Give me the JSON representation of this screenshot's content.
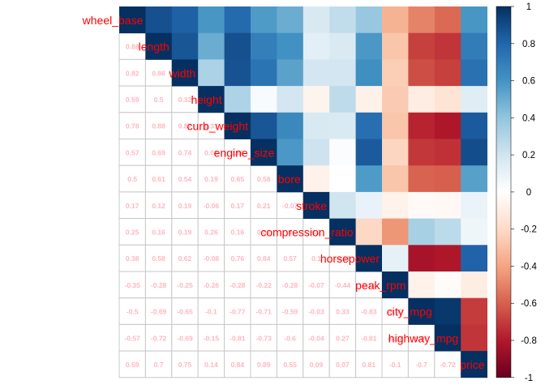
{
  "chart_data": {
    "type": "heatmap",
    "variables": [
      "wheel_base",
      "length",
      "width",
      "height",
      "curb_weight",
      "engine_size",
      "bore",
      "stroke",
      "compression_ratio",
      "horsepower",
      "peak_rpm",
      "city_mpg",
      "highway_mpg",
      "price"
    ],
    "visible_labels": [
      "wheel_base",
      "length",
      "width",
      "height",
      "curb_weight",
      "engine_size",
      "bore",
      "stroke",
      "compression_ratio",
      "horsepower",
      "peak_rpm",
      "city_mpg",
      "highway_mpg",
      "price"
    ],
    "lower_triangle_text": [
      [],
      [
        "0.88"
      ],
      [
        "0.82",
        "0.86"
      ],
      [
        "0.59",
        "0.5",
        "0.32"
      ],
      [
        "0.78",
        "0.88",
        "0.87",
        "0.31"
      ],
      [
        "0.57",
        "0.69",
        "0.74",
        "0.03",
        "0.86"
      ],
      [
        "0.5",
        "0.61",
        "0.54",
        "0.19",
        "0.65",
        "0.58"
      ],
      [
        "0.17",
        "0.12",
        "0.19",
        "-0.06",
        "0.17",
        "0.21",
        "-0.07"
      ],
      [
        "0.25",
        "0.16",
        "0.19",
        "0.26",
        "0.16",
        "0.02",
        "0",
        "0.2"
      ],
      [
        "0.38",
        "0.58",
        "0.62",
        "-0.08",
        "0.76",
        "0.84",
        "0.57",
        "0.1",
        "-0.21"
      ],
      [
        "-0.35",
        "-0.28",
        "-0.25",
        "-0.26",
        "-0.28",
        "-0.22",
        "-0.28",
        "-0.07",
        "-0.44",
        "0.11"
      ],
      [
        "-0.5",
        "-0.69",
        "-0.65",
        "-0.1",
        "-0.77",
        "-0.71",
        "-0.59",
        "-0.03",
        "0.33",
        "-0.83",
        "-0.07"
      ],
      [
        "-0.57",
        "-0.72",
        "-0.69",
        "-0.15",
        "-0.81",
        "-0.73",
        "-0.6",
        "-0.04",
        "0.27",
        "-0.81",
        "-0.02",
        "0.97"
      ],
      [
        "0.59",
        "0.7",
        "0.75",
        "0.14",
        "0.84",
        "0.89",
        "0.55",
        "0.09",
        "0.07",
        "0.81",
        "-0.1",
        "-0.7",
        "-0.72"
      ]
    ],
    "colorbar": {
      "ticks": [
        "1",
        "0.8",
        "0.6",
        "0.4",
        "0.2",
        "0",
        "-0.2",
        "-0.4",
        "-0.6",
        "-0.8",
        "-1"
      ],
      "range": [
        -1,
        1
      ]
    },
    "colors": {
      "label": "#ff0000",
      "number": "#ffb6c1",
      "strongPositive": "#053061",
      "strongNegative": "#67001f",
      "neutral": "#ffffff"
    }
  }
}
